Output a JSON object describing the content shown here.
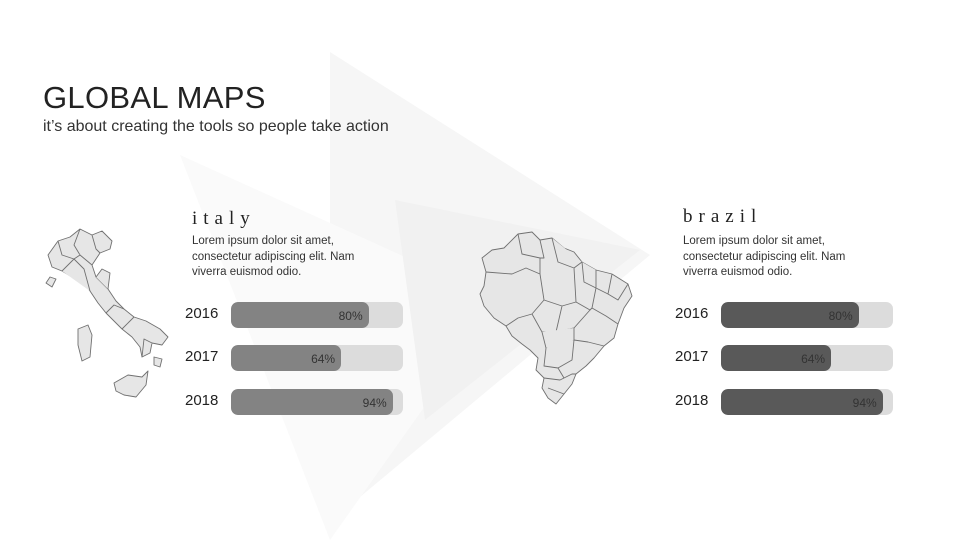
{
  "header": {
    "title": "GLOBAL MAPS",
    "subtitle": "it’s about creating the tools so people take action"
  },
  "colors": {
    "italy_bar": "#838383",
    "brazil_bar": "#595959",
    "track": "#dcdcdc",
    "map_fill": "#e6e6e6",
    "map_stroke": "#707070"
  },
  "countries": [
    {
      "name": "italy",
      "map_icon": "italy-map-icon",
      "description": "Lorem ipsum dolor sit amet, consectetur adipiscing elit. Nam viverra euismod odio.",
      "stats": [
        {
          "year": "2016",
          "value": 80,
          "label": "80%"
        },
        {
          "year": "2017",
          "value": 64,
          "label": "64%"
        },
        {
          "year": "2018",
          "value": 94,
          "label": "94%"
        }
      ]
    },
    {
      "name": "brazil",
      "map_icon": "brazil-map-icon",
      "description": "Lorem ipsum dolor sit amet, consectetur adipiscing elit. Nam viverra euismod odio.",
      "stats": [
        {
          "year": "2016",
          "value": 80,
          "label": "80%"
        },
        {
          "year": "2017",
          "value": 64,
          "label": "64%"
        },
        {
          "year": "2018",
          "value": 94,
          "label": "94%"
        }
      ]
    }
  ]
}
